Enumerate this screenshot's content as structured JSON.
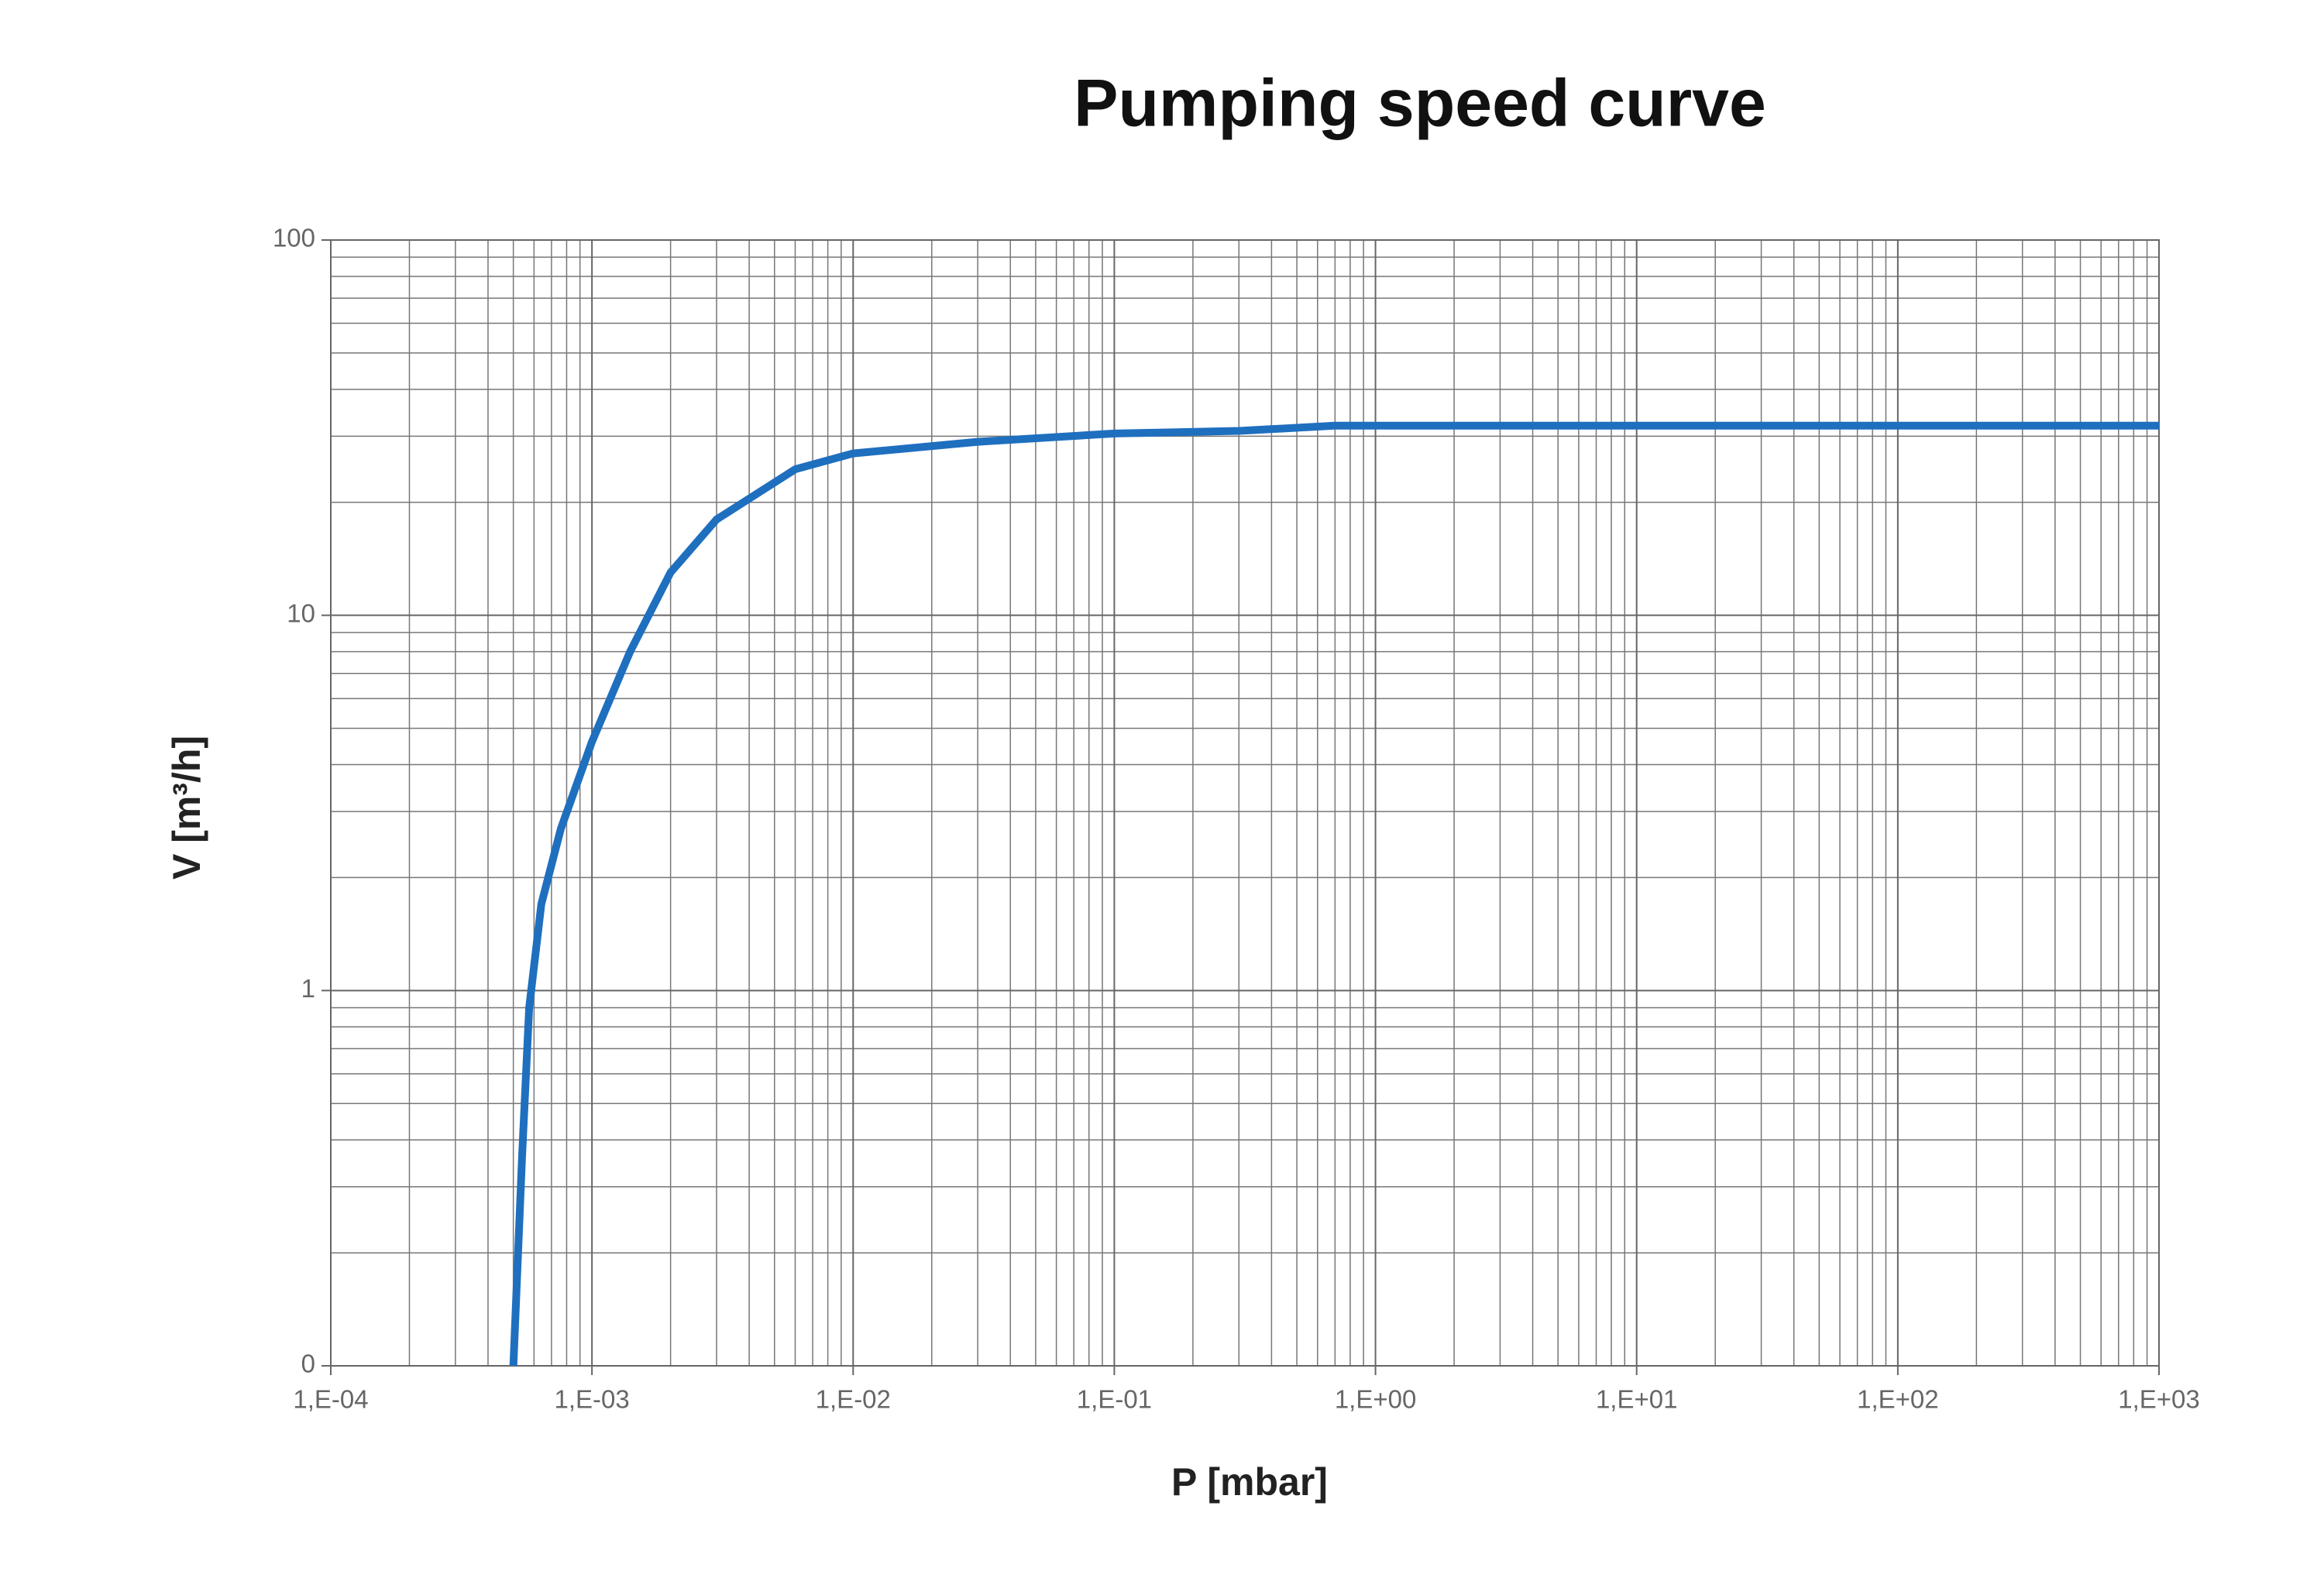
{
  "chart_data": {
    "type": "line",
    "title": "Pumping speed curve",
    "x_label": "P [mbar]",
    "y_label": "V [m³/h]",
    "x_log": true,
    "y_log": true,
    "grid": true,
    "xlim": [
      0.0001,
      1000
    ],
    "ylim": [
      0.1,
      100
    ],
    "xticks": [
      {
        "value": 0.0001,
        "label": "1,E-04"
      },
      {
        "value": 0.001,
        "label": "1,E-03"
      },
      {
        "value": 0.01,
        "label": "1,E-02"
      },
      {
        "value": 0.1,
        "label": "1,E-01"
      },
      {
        "value": 1,
        "label": "1,E+00"
      },
      {
        "value": 10,
        "label": "1,E+01"
      },
      {
        "value": 100,
        "label": "1,E+02"
      },
      {
        "value": 1000,
        "label": "1,E+03"
      }
    ],
    "yticks": [
      {
        "value": 0.1,
        "label": "0"
      },
      1,
      10,
      100
    ],
    "x": [
      0.0005,
      0.00054,
      0.000575,
      0.00064,
      0.00076,
      0.001,
      0.0014,
      0.002,
      0.003,
      0.006,
      0.01,
      0.03,
      0.1,
      0.3,
      0.7,
      1000
    ],
    "series": [
      {
        "name": "Pumping speed",
        "color": "#1f6fbf",
        "values": [
          0.1,
          0.36,
          0.9,
          1.7,
          2.7,
          4.6,
          8,
          13,
          18,
          24.5,
          27,
          29,
          30.5,
          31,
          32,
          32
        ]
      }
    ]
  }
}
